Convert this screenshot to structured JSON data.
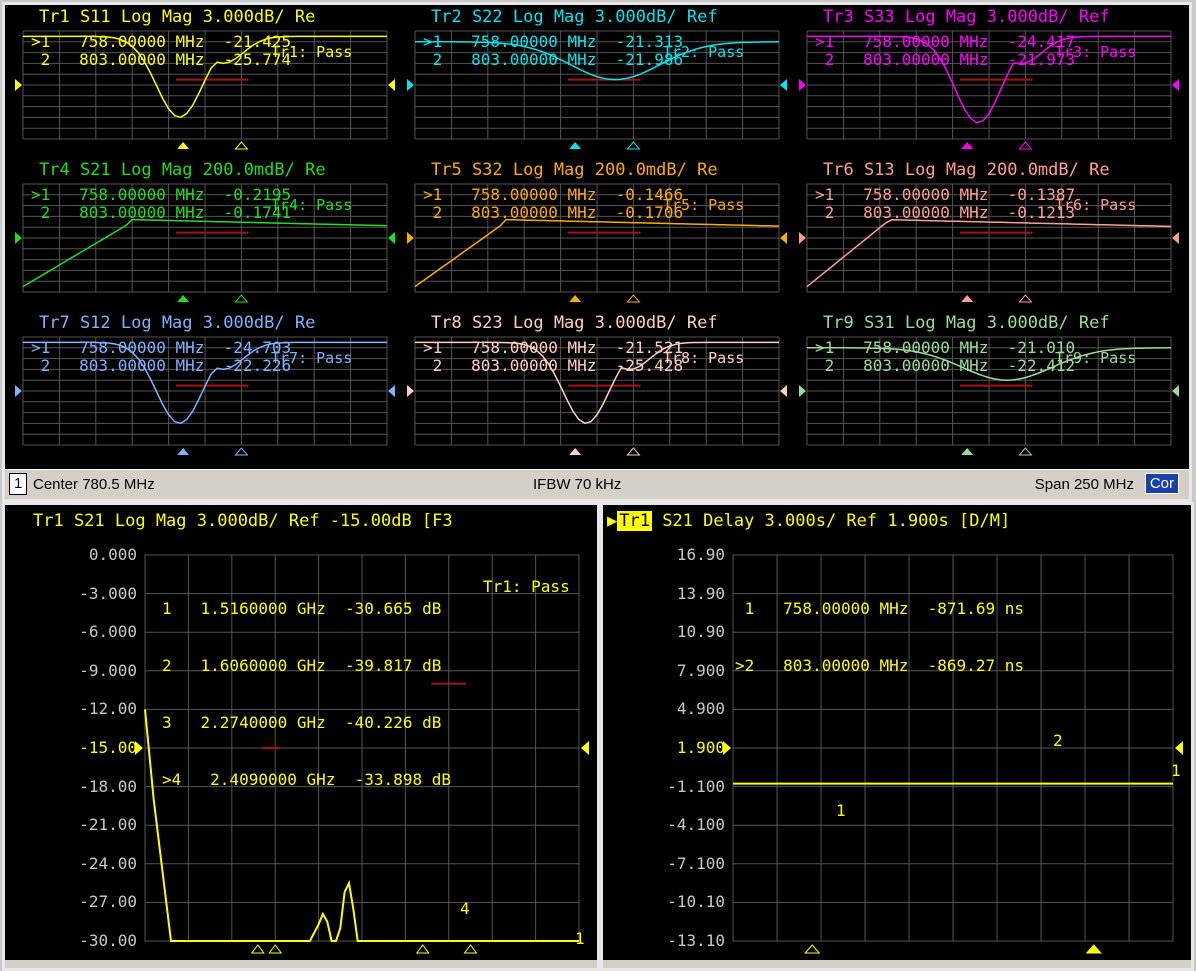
{
  "grid_traces": [
    {
      "id": "tr1",
      "title": "Tr1  S11 Log Mag 3.000dB/ Re",
      "color": "#ffff00",
      "m1": ">1   758.00000 MHz  -21.425",
      "m2": " 2   803.00000 MHz  -25.774",
      "overlay": "Tr1: Pass",
      "shape": "dip",
      "dip_at": 0.43,
      "depth": 0.75
    },
    {
      "id": "tr2",
      "title": "Tr2  S22 Log Mag 3.000dB/ Ref",
      "color": "#00e5ee",
      "m1": ">1   758.00000 MHz  -21.313",
      "m2": " 2   803.00000 MHz  -21.986",
      "overlay": "Tr2: Pass",
      "shape": "shallow",
      "dip_at": 0.55,
      "depth": 0.35
    },
    {
      "id": "tr3",
      "title": "Tr3  S33 Log Mag 3.000dB/ Ref",
      "color": "#ff00ff",
      "m1": ">1   758.00000 MHz  -24.417",
      "m2": " 2   803.00000 MHz  -21.973",
      "overlay": "Tr3: Pass",
      "shape": "dip",
      "dip_at": 0.47,
      "depth": 0.8
    },
    {
      "id": "tr4",
      "title": "Tr4  S21 Log Mag 200.0mdB/ Re",
      "color": "#22dd22",
      "m1": ">1   758.00000 MHz  -0.2195",
      "m2": " 2   803.00000 MHz  -0.1741",
      "overlay": "Tr4: Pass",
      "shape": "rise",
      "dip_at": 0.3,
      "depth": 0.6
    },
    {
      "id": "tr5",
      "title": "Tr5  S32 Log Mag 200.0mdB/ Re",
      "color": "#ffaa00",
      "m1": ">1   758.00000 MHz  -0.1466",
      "m2": " 2   803.00000 MHz  -0.1706",
      "overlay": "Tr5: Pass",
      "shape": "rise",
      "dip_at": 0.25,
      "depth": 0.6
    },
    {
      "id": "tr6",
      "title": "Tr6  S13 Log Mag 200.0mdB/ Re",
      "color": "#ff9f90",
      "m1": ">1   758.00000 MHz  -0.1387",
      "m2": " 2   803.00000 MHz  -0.1213",
      "overlay": "Tr6: Pass",
      "shape": "rise",
      "dip_at": 0.22,
      "depth": 0.6
    },
    {
      "id": "tr7",
      "title": "Tr7  S12 Log Mag 3.000dB/ Re",
      "color": "#7fb2ff",
      "m1": ">1   758.00000 MHz  -24.703",
      "m2": " 2   803.00000 MHz  -22.226",
      "overlay": "Tr7: Pass",
      "shape": "dip",
      "dip_at": 0.43,
      "depth": 0.75
    },
    {
      "id": "tr8",
      "title": "Tr8  S23 Log Mag 3.000dB/ Ref",
      "color": "#ffd0c0",
      "m1": ">1   758.00000 MHz  -21.521",
      "m2": " 2   803.00000 MHz  -25.428",
      "overlay": "Tr8: Pass",
      "shape": "dip",
      "dip_at": 0.47,
      "depth": 0.75
    },
    {
      "id": "tr9",
      "title": "Tr9  S31 Log Mag 3.000dB/ Ref",
      "color": "#99dd99",
      "m1": ">1   758.00000 MHz  -21.010",
      "m2": " 2   803.00000 MHz  -22.412",
      "overlay": "Tr9: Pass",
      "shape": "shallow",
      "dip_at": 0.55,
      "depth": 0.3
    }
  ],
  "status_bar": {
    "channel": "1",
    "center": "Center 780.5 MHz",
    "ifbw": "IFBW 70 kHz",
    "span": "Span 250 MHz",
    "cor": "Cor"
  },
  "left_chart": {
    "title": "Tr1  S21 Log Mag 3.000dB/ Ref -15.00dB [F3",
    "markers": [
      "1   1.5160000 GHz  -30.665 dB",
      "2   1.6060000 GHz  -39.817 dB",
      "3   2.2740000 GHz  -40.226 dB",
      ">4   2.4090000 GHz  -33.898 dB"
    ],
    "overlay": "Tr1: Pass",
    "ref_marker_label": "4",
    "end_label": "1"
  },
  "right_chart": {
    "badge": "Tr1",
    "title": " S21 Delay 3.000s/ Ref 1.900s [D/M]",
    "markers": [
      " 1   758.00000 MHz  -871.69 ns",
      ">2   803.00000 MHz  -869.27 ns"
    ],
    "marker1_label": "1",
    "marker2_label": "2",
    "end_label": "1"
  },
  "chart_data": [
    {
      "type": "line",
      "title": "Tr1  S21 Log Mag 3.000dB/ Ref -15.00dB [F3",
      "yticks": [
        "0.000",
        "-3.000",
        "-6.000",
        "-9.000",
        "-12.00",
        "-15.00",
        "-18.00",
        "-21.00",
        "-24.00",
        "-27.00",
        "-30.00"
      ],
      "ylim": [
        -30,
        0
      ],
      "reference_value": -15,
      "series": [
        {
          "x_frac": [
            0,
            0.02,
            0.06,
            0.38,
            0.4,
            0.41,
            0.42,
            0.43,
            0.44,
            0.45,
            0.46,
            0.47,
            0.48,
            0.49,
            0.5,
            0.52,
            0.55,
            1.0
          ],
          "values": [
            -12,
            -19,
            -30,
            -30,
            -28.7,
            -27.9,
            -28.5,
            -30,
            -30,
            -29,
            -26.2,
            -25.5,
            -27.5,
            -30,
            -30,
            -30,
            -30,
            -30
          ]
        }
      ],
      "limit_lines": [
        {
          "x_frac": [
            0.27,
            0.31
          ],
          "value": -15
        },
        {
          "x_frac": [
            0.66,
            0.74
          ],
          "value": -10
        }
      ],
      "triangle_x_frac": [
        0.26,
        0.3,
        0.64,
        0.75
      ]
    },
    {
      "type": "line",
      "title": " S21 Delay 3.000s/ Ref 1.900s [D/M]",
      "yticks": [
        "16.90",
        "13.90",
        "10.90",
        "7.900",
        "4.900",
        "1.900",
        "-1.100",
        "-4.100",
        "-7.100",
        "-10.10",
        "-13.10"
      ],
      "ylim": [
        -13.1,
        16.9
      ],
      "reference_value": 1.9,
      "series": [
        {
          "x_frac": [
            0,
            1
          ],
          "values": [
            -0.87,
            -0.87
          ]
        }
      ],
      "marker_x_frac": [
        0.18,
        0.82
      ]
    }
  ]
}
